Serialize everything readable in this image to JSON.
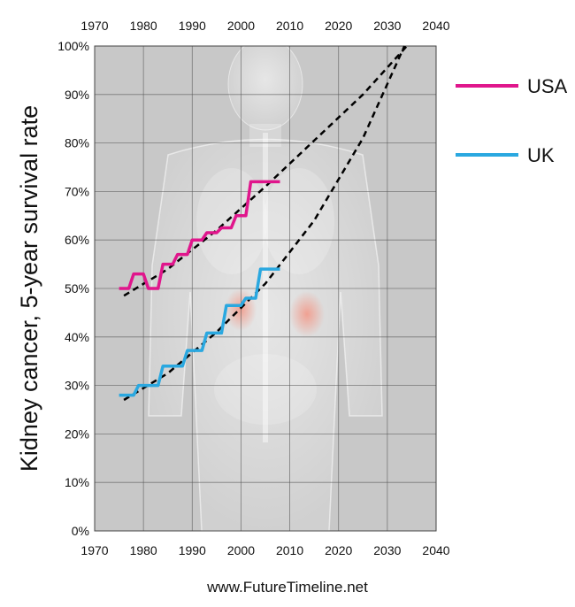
{
  "chart_data": {
    "type": "line",
    "title": "",
    "ylabel": "Kidney cancer, 5-year survival rate",
    "xlabel": "",
    "xlim": [
      1970,
      2040
    ],
    "ylim": [
      0,
      100
    ],
    "x_ticks": [
      1970,
      1980,
      1990,
      2000,
      2010,
      2020,
      2030,
      2040
    ],
    "y_ticks": [
      "0%",
      "10%",
      "20%",
      "30%",
      "40%",
      "50%",
      "60%",
      "70%",
      "80%",
      "90%",
      "100%"
    ],
    "grid": true,
    "legend_position": "right",
    "background": "#c8c8c8",
    "series": [
      {
        "name": "USA",
        "color": "#e0168c",
        "style": "step",
        "points": [
          [
            1975,
            50
          ],
          [
            1977,
            50
          ],
          [
            1978,
            53
          ],
          [
            1980,
            53
          ],
          [
            1981,
            50
          ],
          [
            1983,
            50
          ],
          [
            1984,
            55
          ],
          [
            1986,
            55
          ],
          [
            1987,
            57
          ],
          [
            1989,
            57
          ],
          [
            1990,
            60
          ],
          [
            1992,
            60
          ],
          [
            1993,
            61.5
          ],
          [
            1995,
            61.5
          ],
          [
            1996,
            62.5
          ],
          [
            1998,
            62.5
          ],
          [
            1999,
            65
          ],
          [
            2001,
            65
          ],
          [
            2002,
            72
          ],
          [
            2008,
            72
          ]
        ]
      },
      {
        "name": "UK",
        "color": "#2aa8e0",
        "style": "step",
        "points": [
          [
            1975,
            28
          ],
          [
            1978,
            28
          ],
          [
            1979,
            30
          ],
          [
            1983,
            30
          ],
          [
            1984,
            34
          ],
          [
            1988,
            34
          ],
          [
            1989,
            37.2
          ],
          [
            1992,
            37.2
          ],
          [
            1993,
            40.8
          ],
          [
            1996,
            40.8
          ],
          [
            1997,
            46.5
          ],
          [
            2000,
            46.5
          ],
          [
            2001,
            48
          ],
          [
            2003,
            48
          ],
          [
            2004,
            54
          ],
          [
            2008,
            54
          ]
        ]
      }
    ],
    "trend_lines": [
      {
        "color": "#000000",
        "style": "dashed",
        "points": [
          [
            1976,
            48.5
          ],
          [
            1985,
            54
          ],
          [
            1995,
            62
          ],
          [
            2005,
            71
          ],
          [
            2015,
            80.5
          ],
          [
            2025,
            90
          ],
          [
            2034,
            100
          ]
        ]
      },
      {
        "color": "#000000",
        "style": "dashed",
        "points": [
          [
            1976,
            27
          ],
          [
            1985,
            32.5
          ],
          [
            1995,
            41
          ],
          [
            2005,
            51
          ],
          [
            2015,
            64
          ],
          [
            2025,
            81
          ],
          [
            2033.5,
            100
          ]
        ]
      }
    ]
  },
  "credit": "www.FutureTimeline.net"
}
